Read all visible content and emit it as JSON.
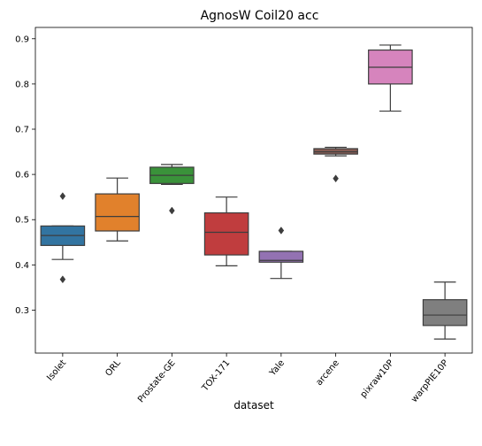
{
  "chart_data": {
    "type": "box",
    "title": "AgnosW Coil20 acc",
    "xlabel": "dataset",
    "ylabel": "",
    "ylim": [
      0.205,
      0.925
    ],
    "yticks": [
      0.3,
      0.4,
      0.5,
      0.6,
      0.7,
      0.8,
      0.9
    ],
    "ytick_labels": [
      "0.3",
      "0.4",
      "0.5",
      "0.6",
      "0.7",
      "0.8",
      "0.9"
    ],
    "grid": false,
    "legend": "none",
    "categories": [
      "Isolet",
      "ORL",
      "Prostate-GE",
      "TOX-171",
      "Yale",
      "arcene",
      "pixraw10P",
      "warpPIE10P"
    ],
    "boxes": [
      {
        "category": "Isolet",
        "color": "#3274a1",
        "whisker_low": 0.412,
        "q1": 0.443,
        "median": 0.465,
        "q3": 0.486,
        "whisker_high": 0.486,
        "outliers": [
          0.552,
          0.368
        ]
      },
      {
        "category": "ORL",
        "color": "#e1812c",
        "whisker_low": 0.453,
        "q1": 0.475,
        "median": 0.507,
        "q3": 0.557,
        "whisker_high": 0.592,
        "outliers": []
      },
      {
        "category": "Prostate-GE",
        "color": "#3a923a",
        "whisker_low": 0.578,
        "q1": 0.58,
        "median": 0.598,
        "q3": 0.616,
        "whisker_high": 0.622,
        "outliers": [
          0.52
        ]
      },
      {
        "category": "TOX-171",
        "color": "#c03d3e",
        "whisker_low": 0.398,
        "q1": 0.422,
        "median": 0.472,
        "q3": 0.515,
        "whisker_high": 0.55,
        "outliers": []
      },
      {
        "category": "Yale",
        "color": "#9372b2",
        "whisker_low": 0.37,
        "q1": 0.406,
        "median": 0.41,
        "q3": 0.43,
        "whisker_high": 0.43,
        "outliers": [
          0.476
        ]
      },
      {
        "category": "arcene",
        "color": "#845b53",
        "whisker_low": 0.641,
        "q1": 0.645,
        "median": 0.65,
        "q3": 0.657,
        "whisker_high": 0.66,
        "outliers": [
          0.591
        ]
      },
      {
        "category": "pixraw10P",
        "color": "#d684bd",
        "whisker_low": 0.74,
        "q1": 0.8,
        "median": 0.837,
        "q3": 0.875,
        "whisker_high": 0.886,
        "outliers": []
      },
      {
        "category": "warpPIE10P",
        "color": "#7f7f7f",
        "whisker_low": 0.236,
        "q1": 0.266,
        "median": 0.289,
        "q3": 0.323,
        "whisker_high": 0.362,
        "outliers": []
      }
    ]
  }
}
